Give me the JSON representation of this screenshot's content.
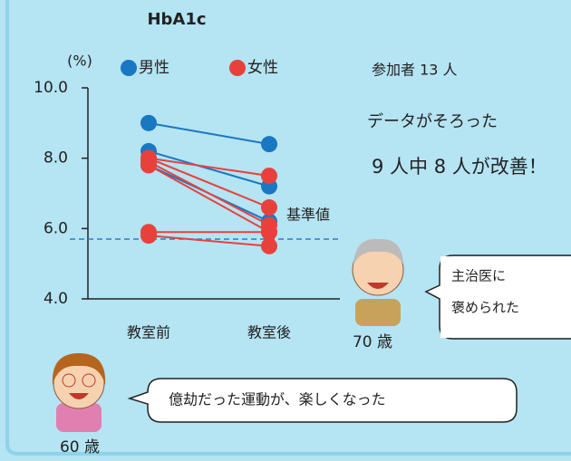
{
  "chart_data": {
    "type": "slope",
    "title": "HbA1c",
    "y_label": "(%)",
    "categories": [
      "教室前",
      "教室後"
    ],
    "series": [
      {
        "name": "男性",
        "color": "#1a78c2",
        "lines": [
          [
            9.0,
            8.4
          ],
          [
            8.2,
            7.2
          ],
          [
            7.8,
            6.2
          ]
        ]
      },
      {
        "name": "女性",
        "color": "#e8413c",
        "lines": [
          [
            8.0,
            7.5
          ],
          [
            8.0,
            6.6
          ],
          [
            7.9,
            6.1
          ],
          [
            7.8,
            5.9
          ],
          [
            5.9,
            5.9
          ],
          [
            5.8,
            5.5
          ]
        ]
      }
    ],
    "ylim": [
      4.0,
      10.0
    ],
    "yticks": [
      {
        "value": 4,
        "label": "4.0"
      },
      {
        "value": 6,
        "label": "6.0"
      },
      {
        "value": 8,
        "label": "8.0"
      },
      {
        "value": 10,
        "label": "10.0"
      }
    ],
    "reference_line": {
      "value": 5.7,
      "label": "基準値"
    }
  },
  "notes": {
    "participants": "参加者 13 人",
    "complete": "データがそろった",
    "improved": "9 人中 8 人が改善！"
  },
  "person_70": {
    "age": "70 歳",
    "bubble": [
      "主治医に",
      "褒められた"
    ]
  },
  "person_60": {
    "age": "60 歳",
    "bubble": "億劫だった運動が、楽しくなった"
  }
}
